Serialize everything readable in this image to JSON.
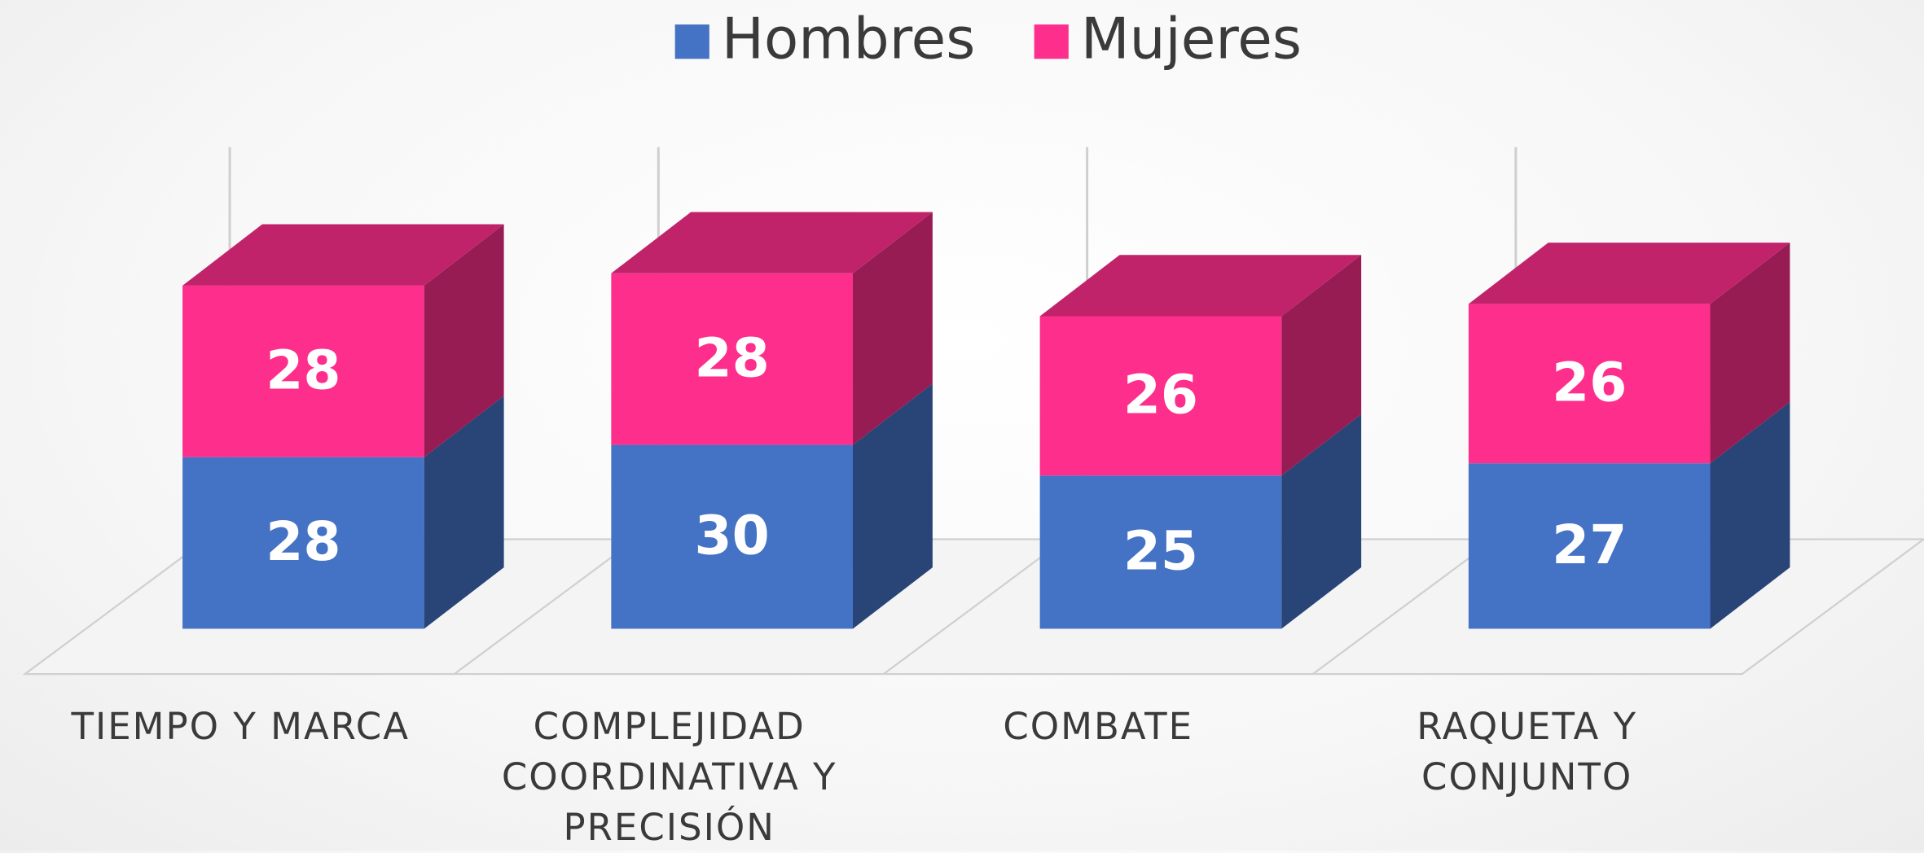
{
  "chart_data": {
    "type": "bar3d_stacked",
    "categories": [
      "TIEMPO Y MARCA",
      "COMPLEJIDAD COORDINATIVA Y PRECISIÓN",
      "COMBATE",
      "RAQUETA Y CONJUNTO"
    ],
    "series": [
      {
        "name": "Hombres",
        "color": "#4472c4",
        "values": [
          28,
          30,
          25,
          27
        ]
      },
      {
        "name": "Mujeres",
        "color": "#fe2e8c",
        "values": [
          28,
          28,
          26,
          26
        ]
      }
    ],
    "legend": "top"
  }
}
